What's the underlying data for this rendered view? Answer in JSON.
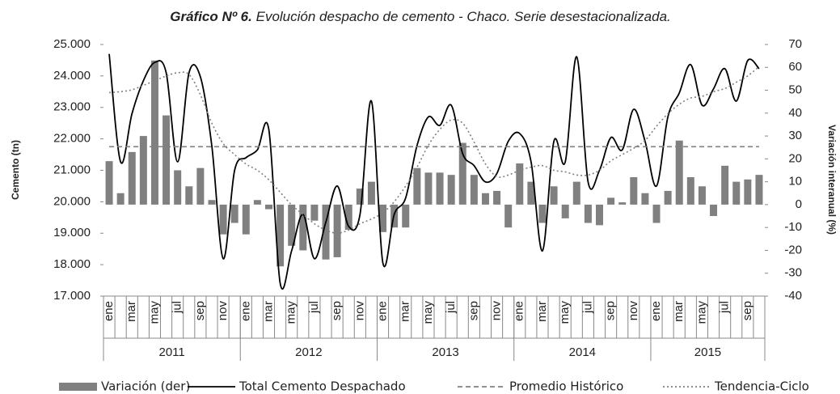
{
  "chart_data": {
    "type": "combo",
    "title_label": "Gráfico Nº 6.",
    "title": "Evolución despacho de cemento - Chaco. Serie desestacionalizada.",
    "y_label": "Cemento (tn)",
    "y2_label": "Variación interanual (%)",
    "categories": [
      "ene",
      null,
      "mar",
      null,
      "may",
      null,
      "jul",
      null,
      "sep",
      null,
      "nov",
      null,
      "ene",
      null,
      "mar",
      null,
      "may",
      null,
      "jul",
      null,
      "sep",
      null,
      "nov",
      null,
      "ene",
      null,
      "mar",
      null,
      "may",
      null,
      "jul",
      null,
      "sep",
      null,
      "nov",
      null,
      "ene",
      null,
      "mar",
      null,
      "may",
      null,
      "jul",
      null,
      "sep",
      null,
      "nov",
      null,
      "ene",
      null,
      "mar",
      null,
      "may",
      null,
      "jul",
      null,
      "sep",
      null
    ],
    "x_groups": [
      {
        "label": "2011",
        "span": 12
      },
      {
        "label": "2012",
        "span": 12
      },
      {
        "label": "2013",
        "span": 12
      },
      {
        "label": "2014",
        "span": 12
      },
      {
        "label": "2015",
        "span": 10
      }
    ],
    "ylim": [
      17000,
      25000
    ],
    "yticks": [
      {
        "value": 17000,
        "label": "17.000"
      },
      {
        "value": 18000,
        "label": "18.000"
      },
      {
        "value": 19000,
        "label": "19.000"
      },
      {
        "value": 20000,
        "label": "20.000"
      },
      {
        "value": 21000,
        "label": "21.000"
      },
      {
        "value": 22000,
        "label": "22.000"
      },
      {
        "value": 23000,
        "label": "23.000"
      },
      {
        "value": 24000,
        "label": "24.000"
      },
      {
        "value": 25000,
        "label": "25.000"
      }
    ],
    "y2lim": [
      -40,
      70
    ],
    "y2ticks": [
      -40,
      -30,
      -20,
      -10,
      0,
      10,
      20,
      30,
      40,
      50,
      60,
      70
    ],
    "series": [
      {
        "name": "Variación (der)",
        "type": "bar",
        "axis": "y2",
        "color": "#808080",
        "values": [
          19,
          5,
          23,
          30,
          63,
          39,
          15,
          8,
          16,
          2,
          -13,
          -8,
          -13,
          2,
          -2,
          -27,
          -18,
          -20,
          -7,
          -24,
          -23,
          -11,
          7,
          10,
          -12,
          -10,
          -10,
          16,
          14,
          14,
          13,
          27,
          13,
          5,
          6,
          -10,
          18,
          10,
          -8,
          8,
          -6,
          10,
          -8,
          -9,
          3,
          1,
          12,
          5,
          -8,
          6,
          28,
          12,
          8,
          -5,
          17,
          10,
          11,
          13
        ]
      },
      {
        "name": "Total Cemento Despachado",
        "type": "line",
        "style": "solid",
        "color": "#000000",
        "values": [
          24700,
          21270,
          22800,
          23850,
          24430,
          24100,
          21270,
          24100,
          23970,
          21780,
          18190,
          21000,
          21400,
          21650,
          22300,
          17400,
          18440,
          19600,
          18190,
          19350,
          20500,
          19220,
          19600,
          23200,
          18060,
          19600,
          20120,
          21790,
          22700,
          22430,
          23070,
          21530,
          21150,
          20630,
          20900,
          21920,
          22170,
          21270,
          18440,
          21920,
          21270,
          24610,
          20630,
          21000,
          22040,
          21650,
          22940,
          21920,
          20500,
          22700,
          23460,
          24360,
          23070,
          23590,
          24230,
          23200,
          24490,
          24230
        ]
      },
      {
        "name": "Promedio Histórico",
        "type": "line",
        "style": "dashed",
        "color": "#808080",
        "values": [
          21750,
          21750,
          21750,
          21750,
          21750,
          21750,
          21750,
          21750,
          21750,
          21750,
          21750,
          21750,
          21750,
          21750,
          21750,
          21750,
          21750,
          21750,
          21750,
          21750,
          21750,
          21750,
          21750,
          21750,
          21750,
          21750,
          21750,
          21750,
          21750,
          21750,
          21750,
          21750,
          21750,
          21750,
          21750,
          21750,
          21750,
          21750,
          21750,
          21750,
          21750,
          21750,
          21750,
          21750,
          21750,
          21750,
          21750,
          21750,
          21750,
          21750,
          21750,
          21750,
          21750,
          21750,
          21750,
          21750,
          21750,
          21750
        ]
      },
      {
        "name": "Tendencia-Ciclo",
        "type": "line",
        "style": "dotted",
        "color": "#808080",
        "values": [
          23470,
          23500,
          23560,
          23700,
          23850,
          24000,
          24100,
          24050,
          23400,
          22500,
          21850,
          21500,
          21200,
          21000,
          20700,
          20300,
          19900,
          19600,
          19300,
          19100,
          19000,
          19100,
          19300,
          19450,
          19650,
          20000,
          20500,
          21100,
          21800,
          22300,
          22600,
          22500,
          21900,
          21200,
          20800,
          20850,
          21000,
          21100,
          21150,
          21000,
          20950,
          20850,
          20850,
          21000,
          21300,
          21500,
          21700,
          21950,
          22400,
          22800,
          23100,
          23300,
          23350,
          23500,
          23600,
          23800,
          24000,
          24300
        ]
      }
    ]
  }
}
